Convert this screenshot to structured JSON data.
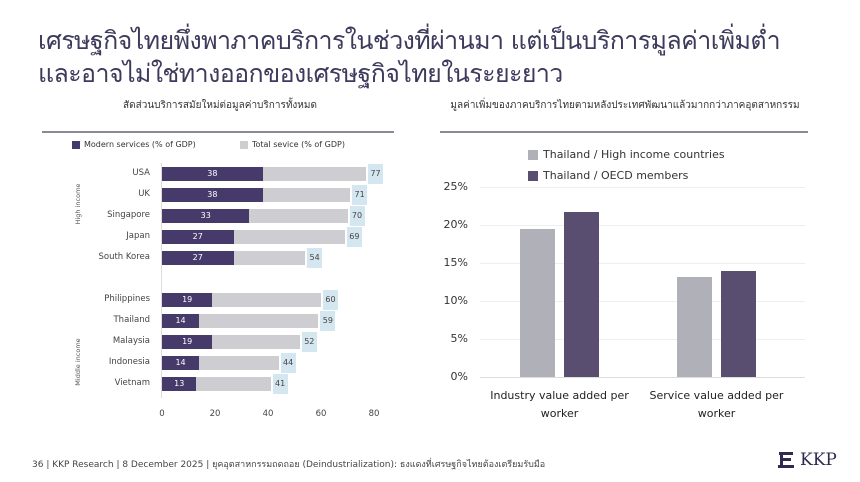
{
  "title_line1": "เศรษฐกิจไทยพึ่งพาภาคบริการในช่วงที่ผ่านมา แต่เป็นบริการมูลค่าเพิ่มต่ำ",
  "title_line2": "และอาจไม่ใช่ทางออกของเศรษฐกิจไทยในระยะยาว",
  "footer": "36   | KKP Research | 8 December 2025 | ยุคอุตสาหกรรมถดถอย (Deindustrialization): ธงแดงที่เศรษฐกิจไทยต้องเตรียมรับมือ",
  "logo_text": "KKP",
  "chart_data": [
    {
      "type": "bar",
      "orientation": "horizontal",
      "title": "สัดส่วนบริการสมัยใหม่ต่อมูลค่าบริการทั้งหมด",
      "categories": [
        "USA",
        "UK",
        "Singapore",
        "Japan",
        "South Korea",
        "Philippines",
        "Thailand",
        "Malaysia",
        "Indonesia",
        "Vietnam"
      ],
      "groups": [
        {
          "name": "High income",
          "count": 5
        },
        {
          "name": "Middle income",
          "count": 5
        }
      ],
      "series": [
        {
          "name": "Modern services (% of GDP)",
          "color": "#463a6b",
          "values": [
            38,
            38,
            33,
            27,
            27,
            19,
            14,
            19,
            14,
            13
          ]
        },
        {
          "name": "Total sevice (% of GDP)",
          "color": "#cdcdd2",
          "values": [
            77,
            71,
            70,
            69,
            54,
            60,
            59,
            52,
            44,
            41
          ]
        }
      ],
      "xlim": [
        0,
        80
      ],
      "xticks": [
        "0",
        "20",
        "40",
        "60",
        "80"
      ],
      "legend": "top"
    },
    {
      "type": "bar",
      "title": "มูลค่าเพิ่มของภาคบริการไทยตามหลังประเทศพัฒนาแล้วมากกว่าภาคอุตสาหกรรม",
      "categories": [
        "Industry value added per worker",
        "Service value added per worker"
      ],
      "series": [
        {
          "name": "Thailand / High income countries",
          "color": "#b0b0b8",
          "values": [
            19.5,
            13.1
          ]
        },
        {
          "name": "Thailand / OECD members",
          "color": "#594d70",
          "values": [
            21.7,
            13.9
          ]
        }
      ],
      "ylim": [
        0,
        25
      ],
      "yticks": [
        "0%",
        "5%",
        "10%",
        "15%",
        "20%",
        "25%"
      ],
      "grid": true,
      "legend": "top"
    }
  ]
}
